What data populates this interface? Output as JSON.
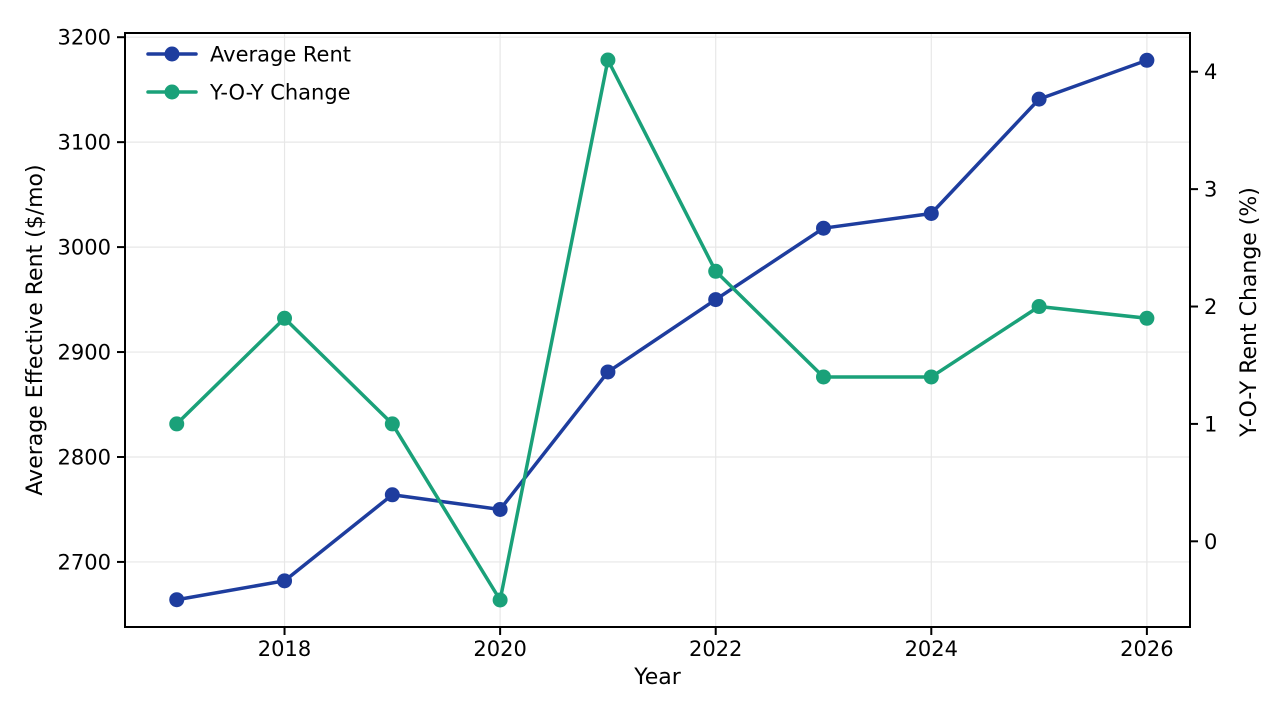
{
  "chart_data": {
    "type": "line",
    "title": "",
    "xlabel": "Year",
    "ylabel_left": "Average Effective Rent ($/mo)",
    "ylabel_right": "Y-O-Y Rent Change (%)",
    "x": [
      2017,
      2018,
      2019,
      2020,
      2021,
      2022,
      2023,
      2024,
      2025,
      2026
    ],
    "series": [
      {
        "name": "Average Rent",
        "axis": "left",
        "color": "#1e3d9e",
        "marker": "circle",
        "values": [
          2664,
          2682,
          2764,
          2750,
          2881,
          2950,
          3018,
          3032,
          3141,
          3178
        ]
      },
      {
        "name": "Y-O-Y Change",
        "axis": "right",
        "color": "#1aa179",
        "marker": "circle",
        "values": [
          1.0,
          1.9,
          1.0,
          -0.5,
          4.1,
          2.3,
          1.4,
          1.4,
          2.0,
          1.9
        ]
      }
    ],
    "xticks": [
      2018,
      2020,
      2022,
      2024,
      2026
    ],
    "yticks_left": [
      2700,
      2800,
      2900,
      3000,
      3100,
      3200
    ],
    "yticks_right": [
      0,
      1,
      2,
      3,
      4
    ],
    "xlim": [
      2016.52,
      2026.4
    ],
    "ylim_left": [
      2638,
      3204
    ],
    "ylim_right": [
      -0.73,
      4.33
    ],
    "grid": true,
    "legend_position": "upper-left",
    "colors": {
      "grid": "#e7e7e7",
      "spine": "#000000",
      "text": "#000000",
      "background": "#ffffff"
    }
  }
}
